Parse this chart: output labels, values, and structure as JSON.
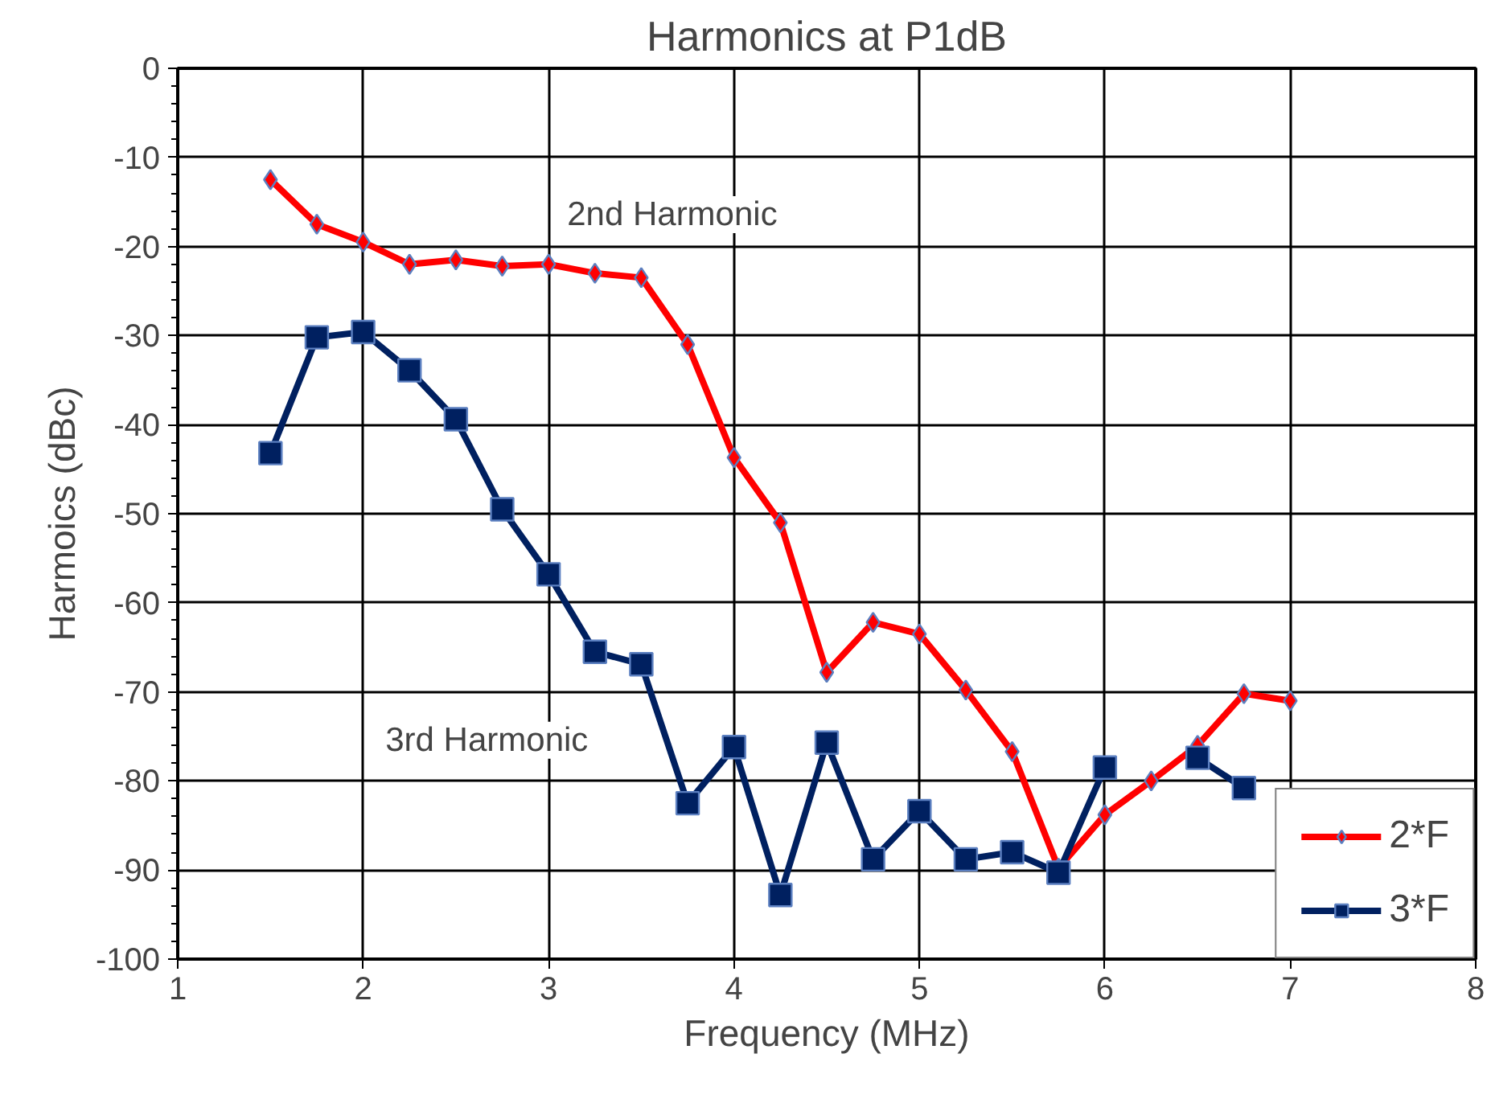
{
  "chart_data": {
    "type": "line",
    "title": "Harmonics at P1dB",
    "xlabel": "Frequency (MHz)",
    "ylabel": "Harmoics (dBc)",
    "x": [
      1.5,
      1.75,
      2,
      2.25,
      2.5,
      2.75,
      3,
      3.25,
      3.5,
      3.75,
      4,
      4.25,
      4.5,
      4.75,
      5,
      5.25,
      5.5,
      5.75,
      6,
      6.25,
      6.5,
      6.75,
      7
    ],
    "series": [
      {
        "name": "2*F",
        "color": "#ff0000",
        "marker": "diamond",
        "values": [
          -12.5,
          -17.5,
          -19.5,
          -22,
          -21.5,
          -22.2,
          -22,
          -23,
          -23.5,
          -31,
          -43.7,
          -51,
          -67.8,
          -62.2,
          -63.5,
          -69.8,
          -76.7,
          -89.8,
          -83.8,
          -80,
          -76,
          -70.2,
          -71
        ]
      },
      {
        "name": "3*F",
        "color": "#002060",
        "marker": "square",
        "values": [
          -43.2,
          -30.2,
          -29.6,
          -33.9,
          -39.4,
          -49.5,
          -56.8,
          -65.5,
          -66.9,
          -82.5,
          -76.2,
          -92.8,
          -75.7,
          -88.8,
          -83.4,
          -88.8,
          -88,
          -90.3,
          -78.5,
          null,
          -77.4,
          -80.8,
          null
        ]
      }
    ],
    "xlim": [
      1,
      8
    ],
    "xticks": [
      1,
      2,
      3,
      4,
      5,
      6,
      7,
      8
    ],
    "ylim": [
      -100,
      0
    ],
    "yticks": [
      -100,
      -90,
      -80,
      -70,
      -60,
      -50,
      -40,
      -30,
      -20,
      -10,
      0
    ],
    "annotations": [
      "2nd Harmonic",
      "3rd Harmonic"
    ],
    "grid": true,
    "legend": "bottom right",
    "line_style": "solid"
  }
}
